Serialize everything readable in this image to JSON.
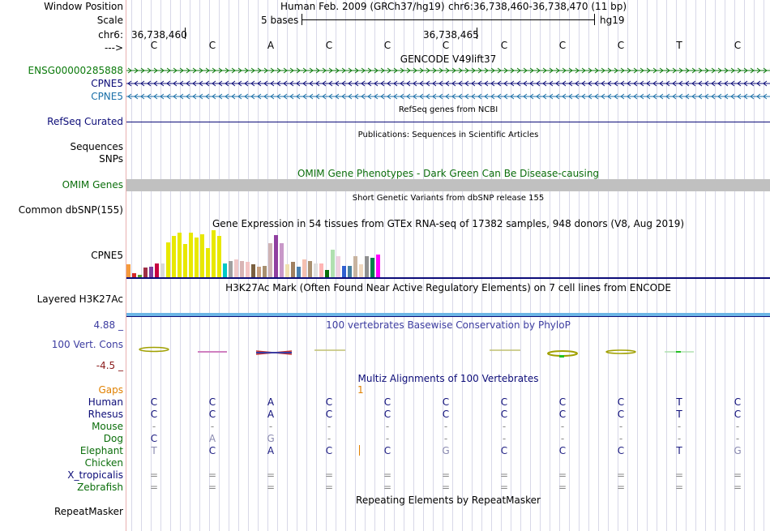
{
  "labels": {
    "window_position": "Window Position",
    "scale": "Scale",
    "chr": "chr6:",
    "strand": "--->",
    "ensg": "ENSG00000285888",
    "cpne5_a": "CPNE5",
    "cpne5_b": "CPNE5",
    "refseq": "RefSeq Curated",
    "sequences": "Sequences",
    "snps": "SNPs",
    "omim": "OMIM Genes",
    "dbsnp": "Common dbSNP(155)",
    "gtex": "CPNE5",
    "h3k27ac": "Layered H3K27Ac",
    "phylop_max": "4.88 _",
    "vert_cons": "100 Vert. Cons",
    "phylop_min": "-4.5 _",
    "gaps": "Gaps",
    "species": [
      "Human",
      "Rhesus",
      "Mouse",
      "Dog",
      "Elephant",
      "Chicken",
      "X_tropicalis",
      "Zebrafish"
    ],
    "repeatmasker": "RepeatMasker"
  },
  "header": {
    "assembly": "Human Feb. 2009 (GRCh37/hg19)",
    "position": "chr6:36,738,460-36,738,470 (11 bp)",
    "scale_bases": "5 bases",
    "scale_db": "hg19",
    "coord_1": "36,738,460",
    "coord_2": "36,738,465"
  },
  "bases": [
    "C",
    "C",
    "A",
    "C",
    "C",
    "C",
    "C",
    "C",
    "C",
    "T",
    "C"
  ],
  "track_titles": {
    "gencode": "GENCODE V49lift37",
    "refseq": "RefSeq genes from NCBI",
    "publications": "Publications: Sequences in Scientific Articles",
    "omim": "OMIM Gene Phenotypes - Dark Green Can Be Disease-causing",
    "dbsnp": "Short Genetic Variants from dbSNP release 155",
    "gtex": "Gene Expression in 54 tissues from GTEx RNA-seq of 17382 samples, 948 donors (V8, Aug 2019)",
    "h3k27ac": "H3K27Ac Mark (Often Found Near Active Regulatory Elements) on 7 cell lines from ENCODE",
    "phylop": "100 vertebrates Basewise Conservation by PhyloP",
    "multiz": "Multiz Alignments of 100 Vertebrates",
    "repeatmasker": "Repeating Elements by RepeatMasker"
  },
  "gaps_mark": "1",
  "alignment": {
    "Human": [
      "C",
      "C",
      "A",
      "C",
      "C",
      "C",
      "C",
      "C",
      "C",
      "T",
      "C"
    ],
    "Rhesus": [
      "C",
      "C",
      "A",
      "C",
      "C",
      "C",
      "C",
      "C",
      "C",
      "T",
      "C"
    ],
    "Mouse": [
      "-",
      "-",
      "-",
      "-",
      "-",
      "-",
      "-",
      "-",
      "-",
      "-",
      "-"
    ],
    "Dog": [
      "C",
      "A",
      "G",
      "-",
      "-",
      "-",
      "-",
      "-",
      "-",
      "-",
      "-"
    ],
    "Elephant": [
      "T",
      "C",
      "A",
      "C",
      "C",
      "G",
      "C",
      "C",
      "C",
      "T",
      "G"
    ],
    "Chicken": [
      "",
      "",
      "",
      "",
      "",
      "",
      "",
      "",
      "",
      "",
      ""
    ],
    "X_tropicalis": [
      "=",
      "=",
      "=",
      "=",
      "=",
      "=",
      "=",
      "=",
      "=",
      "=",
      "="
    ],
    "Zebrafish": [
      "=",
      "=",
      "=",
      "=",
      "=",
      "=",
      "=",
      "=",
      "=",
      "=",
      "="
    ]
  },
  "alignment_colors": {
    "Dog": [
      "#1a1a80",
      "#8a8ab0",
      "#8a8ab0",
      "#888",
      "#888",
      "#888",
      "#888",
      "#888",
      "#888",
      "#888",
      "#888"
    ],
    "Elephant": [
      "#8a8ab0",
      "#1a1a80",
      "#1a1a80",
      "#1a1a80",
      "#1a1a80",
      "#8a8ab0",
      "#1a1a80",
      "#1a1a80",
      "#1a1a80",
      "#1a1a80",
      "#8a8ab0"
    ]
  },
  "colors": {
    "gencode_green": "#0b7a0b",
    "navy": "#0c0c78",
    "teal": "#1a6fa8",
    "omim_gray": "#c0c0c0",
    "h3k27ac_blue": "#6cb6e6",
    "phylop_blue": "#3c3ca0",
    "phylop_red": "#8b1a1a",
    "gaps_orange": "#e08000",
    "species_green": "#0b6e0b"
  },
  "gtex_bars": [
    {
      "color": "#f59a3b",
      "value": 28
    },
    {
      "color": "#d62728",
      "value": 8
    },
    {
      "color": "#5aa02c",
      "value": 5
    },
    {
      "color": "#9e2f46",
      "value": 20
    },
    {
      "color": "#7f3f9f",
      "value": 22
    },
    {
      "color": "#c70040",
      "value": 30
    },
    {
      "color": "#d8d8d8",
      "value": 30
    },
    {
      "color": "#e8e800",
      "value": 75
    },
    {
      "color": "#e8e800",
      "value": 88
    },
    {
      "color": "#e8e800",
      "value": 95
    },
    {
      "color": "#e8e800",
      "value": 70
    },
    {
      "color": "#e8e800",
      "value": 95
    },
    {
      "color": "#e8e800",
      "value": 84
    },
    {
      "color": "#e8e800",
      "value": 92
    },
    {
      "color": "#e8e800",
      "value": 62
    },
    {
      "color": "#e8e800",
      "value": 100
    },
    {
      "color": "#e8e800",
      "value": 88
    },
    {
      "color": "#00c8c8",
      "value": 30
    },
    {
      "color": "#a0a0a0",
      "value": 35
    },
    {
      "color": "#f0c8c8",
      "value": 38
    },
    {
      "color": "#d8b4b4",
      "value": 35
    },
    {
      "color": "#f4c4c4",
      "value": 32
    },
    {
      "color": "#7a6040",
      "value": 28
    },
    {
      "color": "#c8a080",
      "value": 22
    },
    {
      "color": "#a89070",
      "value": 25
    },
    {
      "color": "#d0b4b4",
      "value": 72
    },
    {
      "color": "#9040a0",
      "value": 90
    },
    {
      "color": "#c898c8",
      "value": 72
    },
    {
      "color": "#f0e0b0",
      "value": 28
    },
    {
      "color": "#a08060",
      "value": 32
    },
    {
      "color": "#4880b0",
      "value": 22
    },
    {
      "color": "#f4c0b0",
      "value": 38
    },
    {
      "color": "#a89070",
      "value": 35
    },
    {
      "color": "#e0e0e0",
      "value": 30
    },
    {
      "color": "#ffb4b4",
      "value": 30
    },
    {
      "color": "#0b6e0b",
      "value": 15
    },
    {
      "color": "#b0e0b0",
      "value": 58
    },
    {
      "color": "#f0d0e0",
      "value": 45
    },
    {
      "color": "#3060d0",
      "value": 25
    },
    {
      "color": "#4880a0",
      "value": 25
    },
    {
      "color": "#c8b4a0",
      "value": 45
    },
    {
      "color": "#f0d8c0",
      "value": 28
    },
    {
      "color": "#909090",
      "value": 45
    },
    {
      "color": "#00804a",
      "value": 42
    },
    {
      "color": "#ff00ff",
      "value": 48
    }
  ]
}
